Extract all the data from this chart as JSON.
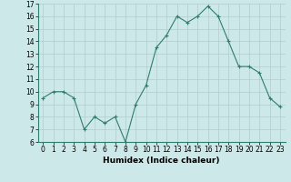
{
  "x": [
    0,
    1,
    2,
    3,
    4,
    5,
    6,
    7,
    8,
    9,
    10,
    11,
    12,
    13,
    14,
    15,
    16,
    17,
    18,
    19,
    20,
    21,
    22,
    23
  ],
  "y": [
    9.5,
    10.0,
    10.0,
    9.5,
    7.0,
    8.0,
    7.5,
    8.0,
    6.0,
    9.0,
    10.5,
    13.5,
    14.5,
    16.0,
    15.5,
    16.0,
    16.8,
    16.0,
    14.0,
    12.0,
    12.0,
    11.5,
    9.5,
    8.8
  ],
  "xlabel": "Humidex (Indice chaleur)",
  "ylim": [
    6,
    17
  ],
  "yticks": [
    6,
    7,
    8,
    9,
    10,
    11,
    12,
    13,
    14,
    15,
    16,
    17
  ],
  "xticks": [
    0,
    1,
    2,
    3,
    4,
    5,
    6,
    7,
    8,
    9,
    10,
    11,
    12,
    13,
    14,
    15,
    16,
    17,
    18,
    19,
    20,
    21,
    22,
    23
  ],
  "line_color": "#2e7d6e",
  "marker": "+",
  "bg_color": "#cde8e8",
  "grid_color": "#b0cccc",
  "tick_fontsize": 5.5,
  "xlabel_fontsize": 6.5
}
